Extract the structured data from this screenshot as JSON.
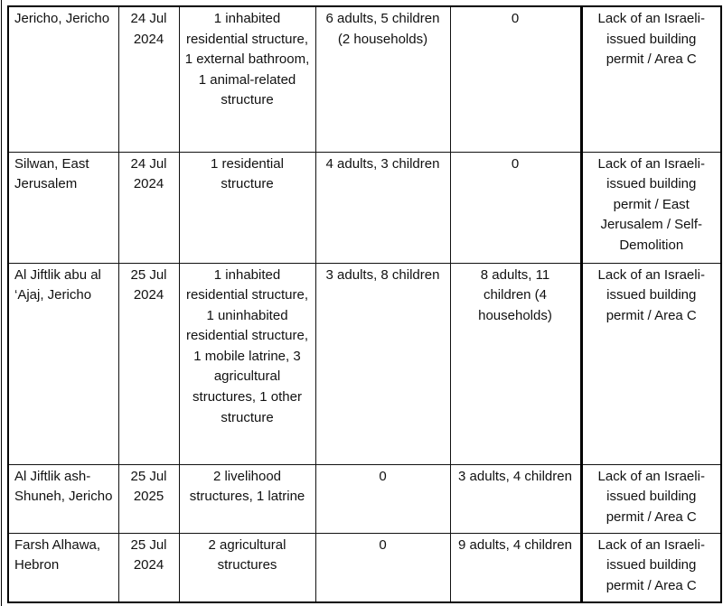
{
  "rows": [
    {
      "location": "Jericho, Jericho",
      "date": "24 Jul 2024",
      "structures": "1 inhabited residential structure, 1 external bathroom, 1 animal-related structure",
      "displaced": "6 adults, 5 children (2 households)",
      "affected": "0",
      "reason": "Lack of an Israeli-issued building permit / Area C"
    },
    {
      "location": "Silwan, East Jerusalem",
      "date": "24 Jul 2024",
      "structures": "1 residential structure",
      "displaced": "4 adults, 3 children",
      "affected": "0",
      "reason": "Lack of an Israeli-issued building permit / East Jerusalem / Self-Demolition"
    },
    {
      "location": "Al Jiftlik abu al ‘Ajaj, Jericho",
      "date": "25 Jul 2024",
      "structures": "1 inhabited residential structure, 1 uninhabited residential structure,  1 mobile latrine, 3 agricultural structures, 1 other structure",
      "displaced": "3 adults, 8 children",
      "affected": "8 adults, 11 children (4 households)",
      "reason": "Lack of an Israeli-issued building permit / Area C"
    },
    {
      "location": "Al Jiftlik ash-Shuneh, Jericho",
      "date": "25 Jul 2025",
      "structures": "2 livelihood structures, 1 latrine",
      "displaced": "0",
      "affected": "3 adults, 4 children",
      "reason": "Lack of an Israeli-issued building permit / Area C"
    },
    {
      "location": "Farsh Alhawa, Hebron",
      "date": "25 Jul 2024",
      "structures": "2 agricultural structures",
      "displaced": "0",
      "affected": "9 adults, 4 children",
      "reason": "Lack of an Israeli-issued building permit / Area C"
    }
  ]
}
